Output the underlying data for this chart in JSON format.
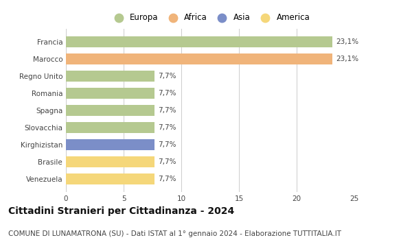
{
  "categories": [
    "Venezuela",
    "Brasile",
    "Kirghizistan",
    "Slovacchia",
    "Spagna",
    "Romania",
    "Regno Unito",
    "Marocco",
    "Francia"
  ],
  "values": [
    7.7,
    7.7,
    7.7,
    7.7,
    7.7,
    7.7,
    7.7,
    23.1,
    23.1
  ],
  "colors": [
    "#f5d77a",
    "#f5d77a",
    "#7b8ec8",
    "#b5c990",
    "#b5c990",
    "#b5c990",
    "#b5c990",
    "#f0b47a",
    "#b5c990"
  ],
  "labels": [
    "7,7%",
    "7,7%",
    "7,7%",
    "7,7%",
    "7,7%",
    "7,7%",
    "7,7%",
    "23,1%",
    "23,1%"
  ],
  "legend_items": [
    {
      "label": "Europa",
      "color": "#b5c990"
    },
    {
      "label": "Africa",
      "color": "#f0b47a"
    },
    {
      "label": "Asia",
      "color": "#7b8ec8"
    },
    {
      "label": "America",
      "color": "#f5d77a"
    }
  ],
  "xlim": [
    0,
    25
  ],
  "xticks": [
    0,
    5,
    10,
    15,
    20,
    25
  ],
  "title": "Cittadini Stranieri per Cittadinanza - 2024",
  "subtitle": "COMUNE DI LUNAMATRONA (SU) - Dati ISTAT al 1° gennaio 2024 - Elaborazione TUTTITALIA.IT",
  "title_fontsize": 10,
  "subtitle_fontsize": 7.5,
  "label_fontsize": 7.5,
  "tick_fontsize": 7.5,
  "legend_fontsize": 8.5,
  "bar_height": 0.65,
  "background_color": "#ffffff",
  "grid_color": "#cccccc",
  "text_color": "#444444"
}
